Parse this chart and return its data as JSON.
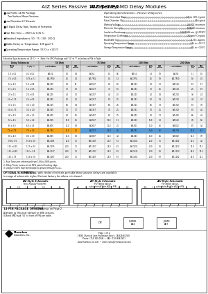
{
  "title_italic": "AIZ Series",
  "title_rest": " Passive 10-Tap DIP/SMD Delay Modules",
  "features": [
    "Low Profile 14-Pin Package\n   Two Surface Mount Versions",
    "Low Distortion LC Network",
    "10 Equal Delay Taps, Variety of Footprints",
    "Fast Rise Time — 850 fs to 0.35 /tₑ",
    "Standard Impedances: 50 · 75 · 100 · 200 Ω",
    "Stable Delay vs. Temperature: 100 ppm/°C",
    "Operating Temperature Range -55°C to +125°C"
  ],
  "op_specs_title": "Operating Specifications – Passive Delay Lines",
  "op_specs": [
    [
      "Pulse Overshoot (Pos)",
      "5% to 10%, typical"
    ],
    [
      "Pulse Distortion (%)",
      "3% typical"
    ],
    [
      "Working Voltage",
      "24 VDC maximum"
    ],
    [
      "Dielectric Strength",
      "500VDC minimum"
    ],
    [
      "Insulation Resistance",
      "1,000 MΩ min. @100VDC"
    ],
    [
      "Temperature Coefficient",
      "70 ppm/°C typical"
    ],
    [
      "Bandwidth (f₀)",
      "0.35/tₑ approx."
    ],
    [
      "Operating Temperature Range",
      "-55° to +125°C"
    ],
    [
      "Storage Temperature Range",
      "-65° to +100°C"
    ]
  ],
  "elec_spec_note": "Electrical Specifications at 25°C ¹ ² ³   Note: For SMD Package add ‘50’ of ‘P’ as below to P/N in Table",
  "table_rows": [
    [
      "1.0 ± 0.1",
      "0.1 ± 0.1",
      "AIZ-50",
      "1.0",
      "0.4",
      "AIZ-52",
      "1.0",
      "0.6",
      "AIZ-51",
      "1.3",
      "0.9",
      "AIZ-50",
      "1.1",
      "1.0"
    ],
    [
      "7.5 ± 0.5",
      "0.75 ± 0.1",
      "AIZ-7P50",
      "1.6",
      "0.4",
      "AIZ-7P52",
      "1.6",
      "1.3",
      "AIZ-7P51",
      "1.6",
      "0.9",
      "AIZ-7P50",
      "1.6",
      "0.4"
    ],
    [
      "10 ± 1.0",
      "1.0 ± 0.8",
      "AIZ-105",
      "2.0",
      "80",
      "AIZ-107",
      "2.0",
      "1.6",
      "AIZ-101",
      "2.0",
      "3.0",
      "AIZ-102",
      "1.9",
      "1.7"
    ],
    [
      "15 ± 1.5",
      "1.5 ± 0.5",
      "AIZ-155",
      "3.0",
      "1.0",
      "AIZ-157",
      "3.0",
      "1.5",
      "AIZ-151",
      "3.0",
      "3.6",
      "AIZ-152",
      "2.5",
      "1.9"
    ],
    [
      "20 ± 1.5",
      "2.0 ± 0.5",
      "AIZ-205",
      "4.0",
      "1.2",
      "AIZ-207",
      "4.0",
      "2.0",
      "AIZ-201",
      "4.0",
      "1.8",
      "AIZ-202",
      "3.6",
      "2.4"
    ],
    [
      "25 ± 1.25",
      "2.5 ± 0.5",
      "AIZ-255",
      "5.0",
      "1.3",
      "AIZ-257",
      "5.0",
      "2.5",
      "AIZ-251",
      "5.0",
      "1.8",
      "AIZ-252",
      "4.4",
      "3.4"
    ],
    [
      "30 ± 1.5",
      "3.0 ± 1.0",
      "AIZ-305",
      "6.0",
      "1.4",
      "AIZ-307",
      "6.0",
      "2.6",
      "AIZ-301",
      "6.0",
      "1.9",
      "AIZ-302",
      "5.0",
      "3.9"
    ],
    [
      "35 ± 1.75",
      "3.5 ± 1.0",
      "AIZ-355",
      "7.0",
      "1.7",
      "AIZ-357",
      "7.0",
      "2.5",
      "AIZ-351",
      "7.0",
      "2.5",
      "AIZ-352",
      "5.5",
      "4.0"
    ],
    [
      "40 ± 2.0",
      "4.0 ± 1.2",
      "AIZ-405",
      "8.0",
      "1.6",
      "AIZ-407",
      "8.0",
      "3.5",
      "AIZ-401",
      "8.0",
      "3.1",
      "AIZ-402",
      "6.6",
      "4.1"
    ],
    [
      "50 ± 2.5",
      "5.0 ± 1.6",
      "AIZ-505",
      "10.0",
      "1.6",
      "AIZ-507",
      "10.0",
      "1.1",
      "AIZ-501",
      "10.0",
      "1.3",
      "AIZ-502",
      "7.6",
      "5.6"
    ],
    [
      "60 ± 3.0",
      "6.0 ± 1.5",
      "AIZ-605",
      "11.0",
      "1.8",
      "AIZ-607",
      "11.0",
      "2.0",
      "AIZ-601",
      "11.0",
      "4.6",
      "AIZ-602",
      "8.5",
      "4.8"
    ],
    [
      "75 ± 3.75",
      "7.5 ± 1.5",
      "AIZ-755",
      "15.0",
      "1.5",
      "AIZ-757",
      "15.0",
      "4.0",
      "AIZ-751",
      "15.0",
      "4.6",
      "AIZ-752",
      "11.0",
      "6.1"
    ],
    [
      "80 ± 4.0",
      "8.0 ± 3.0",
      "AIZ-805",
      "15.0",
      "1.8",
      "AIZ-807",
      "15.0",
      "4.8",
      "AIZ-801",
      "15.0",
      "4.5",
      "AIZ-802",
      "11.0",
      "7.0"
    ],
    [
      "100 ± 5.0",
      "10.0 ± 4.0",
      "AIZ-1005",
      "20.0",
      "1.1",
      "AIZ-1007",
      "20.0",
      "5.1",
      "AIZ-1001",
      "20.0",
      "7.5",
      "AIZ-1002",
      "20.0",
      "4.0"
    ],
    [
      "125 ± 6.25",
      "12.5 ± 4.0",
      "AIZ-1255",
      "24.0",
      "1.1",
      "AIZ-1257",
      "24.0",
      "6.1",
      "AIZ-1251",
      "24.0",
      "6.1",
      "AIZ-1252",
      "20.0",
      "10.5"
    ],
    [
      "112 ± 6.25",
      "11.2 ± 3.8",
      "AIZ-1127",
      "24.0",
      "1.1",
      "AIZ-1127",
      "24.0",
      "6.1",
      "AIZ-1121",
      "24.0",
      "6.1",
      "AIZ-1122",
      "24.0",
      "10.5"
    ],
    [
      "126 ± 7.5",
      "12.6 ± 3.8",
      "AIZ-1267",
      "24.0",
      "1.1",
      "AIZ-1267",
      "24.0",
      "6.3",
      "AIZ-1261",
      "24.0",
      "6.3",
      "AIZ-1262",
      "24.0",
      "10.1"
    ]
  ],
  "highlighted_row": 11,
  "footnotes": [
    "1. Rise Times are referenced from 10%-to-90% points.",
    "2. Delay Times measured at 50% point of leading edge.",
    "3. Output (100% Tap) terminated to ground through R₁=Z₀."
  ],
  "optional_title": "OPTIONAL SCHEMATICS:",
  "optional_desc": "  As below, with similar electricals per table these passive delays are available",
  "optional_sub": "in range of schematic styles (Contact factory for others not shown).",
  "sch_titles": [
    "AIZ Style Schematic",
    "A/Y Style Schematic",
    "A/U Style Schematic"
  ],
  "sch_sub1": [
    "Most Popular Footprint",
    "Per tables above,",
    "Per tables above,"
  ],
  "sch_sub2": [
    "",
    "substitute A/Y for AIZ in P/N",
    "substitute A/U for AIZ in P/N"
  ],
  "pin_title": "14-PIN PACKAGE OPTIONS",
  "pin_text": "  See Drawings on Page 2.",
  "pin_body1": "Available as Thru-hole (default) or SMD versions.",
  "pin_body2": "G-Band SMD add ‘50’ to front of P/N per table.",
  "pkg_labels": [
    "DIP",
    "Q-SMD\nA04",
    "J-SMD\nA07"
  ],
  "company_name": "Rhombus",
  "company_sub": "Industries, Inc.",
  "page_info": "Page 1 of 2",
  "address": "19081 Chemical Lane Huntington Beach, CA 92648-1565",
  "phone": "Phone: (714) 900-0940  •  FAX: (714) 898-0671",
  "website": "www.rhombus-ind.com  •  email: sales@rhombus-ind.com"
}
